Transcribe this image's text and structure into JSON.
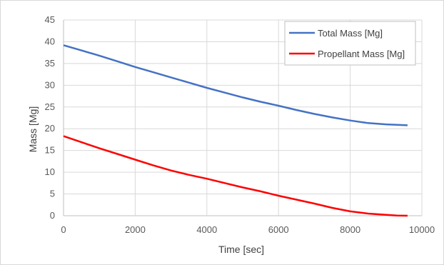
{
  "chart_data": {
    "type": "line",
    "xlabel": "Time [sec]",
    "ylabel": "Mass [Mg]",
    "xlim": [
      0,
      10000
    ],
    "ylim": [
      0,
      45
    ],
    "x_ticks": [
      "0",
      "2000",
      "4000",
      "6000",
      "8000",
      "10000"
    ],
    "y_ticks": [
      "0",
      "5",
      "10",
      "15",
      "20",
      "25",
      "30",
      "35",
      "40",
      "45"
    ],
    "grid": true,
    "legend_position": "top-right",
    "series": [
      {
        "name": "Total Mass [Mg]",
        "color": "#4472c4",
        "x": [
          0,
          500,
          1000,
          1500,
          2000,
          2500,
          3000,
          3500,
          4000,
          4500,
          5000,
          5500,
          6000,
          6500,
          7000,
          7500,
          8000,
          8500,
          9000,
          9300,
          9600
        ],
        "y": [
          39.2,
          38.0,
          36.8,
          35.5,
          34.2,
          33.0,
          31.8,
          30.6,
          29.4,
          28.3,
          27.2,
          26.2,
          25.3,
          24.3,
          23.4,
          22.6,
          21.9,
          21.3,
          21.0,
          20.9,
          20.8
        ]
      },
      {
        "name": "Propellant Mass [Mg]",
        "color": "#ff0000",
        "x": [
          0,
          500,
          1000,
          1500,
          2000,
          2500,
          3000,
          3500,
          4000,
          4500,
          5000,
          5500,
          6000,
          6500,
          7000,
          7500,
          8000,
          8500,
          9000,
          9300,
          9600
        ],
        "y": [
          18.3,
          16.9,
          15.5,
          14.2,
          12.9,
          11.6,
          10.4,
          9.4,
          8.5,
          7.5,
          6.5,
          5.6,
          4.6,
          3.7,
          2.8,
          1.8,
          1.0,
          0.5,
          0.2,
          0.05,
          0.0
        ]
      }
    ]
  }
}
